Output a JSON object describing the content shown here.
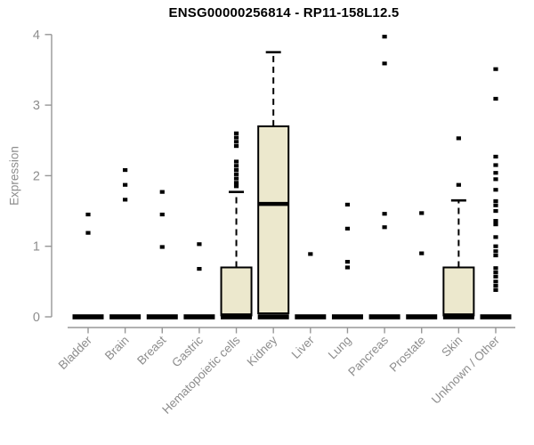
{
  "chart_data": {
    "type": "boxplot",
    "title": "ENSG00000256814 - RP11-158L12.5",
    "ylabel": "Expression",
    "ylim": [
      0,
      4
    ],
    "yticks": [
      0,
      1,
      2,
      3,
      4
    ],
    "grid": false,
    "legend": "none",
    "categories": [
      "Bladder",
      "Brain",
      "Breast",
      "Gastric",
      "Hematopoietic cells",
      "Kidney",
      "Liver",
      "Lung",
      "Pancreas",
      "Prostate",
      "Skin",
      "Unknown / Other"
    ],
    "boxes": [
      {
        "category": "Bladder",
        "low": 0,
        "q1": 0,
        "median": 0,
        "q3": 0,
        "high": 0,
        "outliers": [
          1.45,
          1.19
        ]
      },
      {
        "category": "Brain",
        "low": 0,
        "q1": 0,
        "median": 0,
        "q3": 0,
        "high": 0,
        "outliers": [
          2.08,
          1.87,
          1.66
        ]
      },
      {
        "category": "Breast",
        "low": 0,
        "q1": 0,
        "median": 0,
        "q3": 0,
        "high": 0,
        "outliers": [
          1.77,
          1.45,
          0.99
        ]
      },
      {
        "category": "Gastric",
        "low": 0,
        "q1": 0,
        "median": 0,
        "q3": 0,
        "high": 0,
        "outliers": [
          1.03,
          0.68
        ]
      },
      {
        "category": "Hematopoietic cells",
        "low": 0,
        "q1": 0.02,
        "median": 0.02,
        "q3": 0.7,
        "high": 1.77,
        "outliers": [
          2.6,
          2.54,
          2.48,
          2.42,
          2.2,
          2.14,
          2.08,
          2.02,
          1.96,
          1.9,
          1.85
        ]
      },
      {
        "category": "Kidney",
        "low": 0,
        "q1": 0.05,
        "median": 1.6,
        "q3": 2.7,
        "high": 3.75,
        "outliers": []
      },
      {
        "category": "Liver",
        "low": 0,
        "q1": 0,
        "median": 0,
        "q3": 0,
        "high": 0,
        "outliers": [
          0.89
        ]
      },
      {
        "category": "Lung",
        "low": 0,
        "q1": 0,
        "median": 0,
        "q3": 0,
        "high": 0,
        "outliers": [
          1.59,
          1.25,
          0.78,
          0.7
        ]
      },
      {
        "category": "Pancreas",
        "low": 0,
        "q1": 0,
        "median": 0,
        "q3": 0,
        "high": 0,
        "outliers": [
          3.97,
          3.59,
          1.46,
          1.27
        ]
      },
      {
        "category": "Prostate",
        "low": 0,
        "q1": 0,
        "median": 0,
        "q3": 0,
        "high": 0,
        "outliers": [
          1.47,
          0.9
        ]
      },
      {
        "category": "Skin",
        "low": 0,
        "q1": 0.02,
        "median": 0.02,
        "q3": 0.7,
        "high": 1.65,
        "outliers": [
          2.53,
          1.87
        ]
      },
      {
        "category": "Unknown / Other",
        "low": 0,
        "q1": 0,
        "median": 0,
        "q3": 0,
        "high": 0,
        "outliers": [
          3.51,
          3.09,
          2.27,
          2.15,
          2.04,
          1.95,
          1.8,
          1.64,
          1.58,
          1.5,
          1.36,
          1.31,
          1.13,
          1.0,
          0.93,
          0.87,
          0.69,
          0.63,
          0.57,
          0.5,
          0.44,
          0.38
        ]
      }
    ],
    "colors": {
      "box_fill": "#ece8cd",
      "box_stroke": "#000000",
      "median": "#000000",
      "whisker": "#000000",
      "outlier": "#000000",
      "axis": "#979797",
      "tick_label": "#8d8d8d",
      "title": "#000000",
      "background": "#ffffff"
    }
  }
}
